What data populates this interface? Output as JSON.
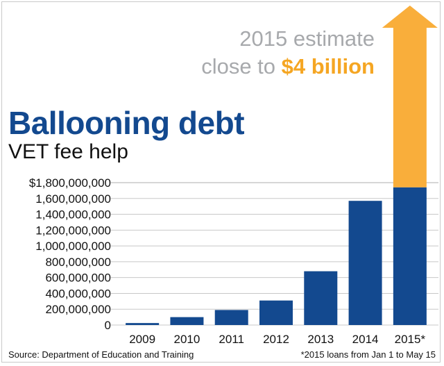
{
  "annotation": {
    "line1": "2015 estimate",
    "line2_prefix": "close to ",
    "line2_highlight": "$4 billion"
  },
  "source": "Source: Department of Education and Training",
  "footnote": "*2015  loans from Jan 1 to May 15",
  "colors": {
    "bar": "#13498f",
    "arrow": "#f9ae3b",
    "title": "#13498f",
    "annotation": "#a7a9ac",
    "highlight": "#f5a623",
    "gridline": "#c8c8c8"
  },
  "chart_data": {
    "type": "bar",
    "title": "Ballooning debt",
    "subtitle": "VET fee help",
    "xlabel": "",
    "ylabel": "",
    "categories": [
      "2009",
      "2010",
      "2011",
      "2012",
      "2013",
      "2014",
      "2015*"
    ],
    "values": [
      25000000,
      100000000,
      190000000,
      310000000,
      680000000,
      1570000000,
      1740000000
    ],
    "ylim": [
      0,
      1800000000
    ],
    "yticks": [
      0,
      200000000,
      400000000,
      600000000,
      800000000,
      1000000000,
      1200000000,
      1400000000,
      1600000000,
      1800000000
    ],
    "ytick_labels": [
      "0",
      "200,000,000",
      "400,000,000",
      "600,000,000",
      "800,000,000",
      "1,000,000,000",
      "1,200,000,000",
      "1,400,000,000",
      "1,600,000,000",
      "$1,800,000,000"
    ],
    "grid": true,
    "estimate": {
      "category": "2015*",
      "value": 4000000000,
      "shown_as": "arrow"
    }
  }
}
